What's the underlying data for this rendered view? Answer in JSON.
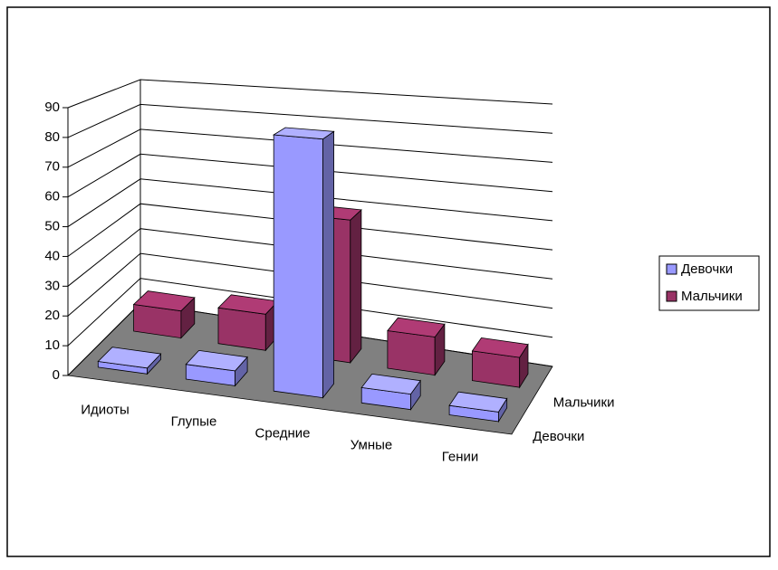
{
  "chart_data": {
    "type": "bar",
    "projection": "3d",
    "categories": [
      "Идиоты",
      "Глупые",
      "Средние",
      "Умные",
      "Гении"
    ],
    "series": [
      {
        "name": "Девочки",
        "color": "#9999ff",
        "values": [
          2,
          5,
          85,
          5,
          3
        ]
      },
      {
        "name": "Мальчики",
        "color": "#993366",
        "values": [
          10,
          13,
          50,
          13,
          10
        ]
      }
    ],
    "ylim": [
      0,
      90
    ],
    "yticks": [
      0,
      10,
      20,
      30,
      40,
      50,
      60,
      70,
      80,
      90
    ],
    "grid": true,
    "legend": "right"
  }
}
